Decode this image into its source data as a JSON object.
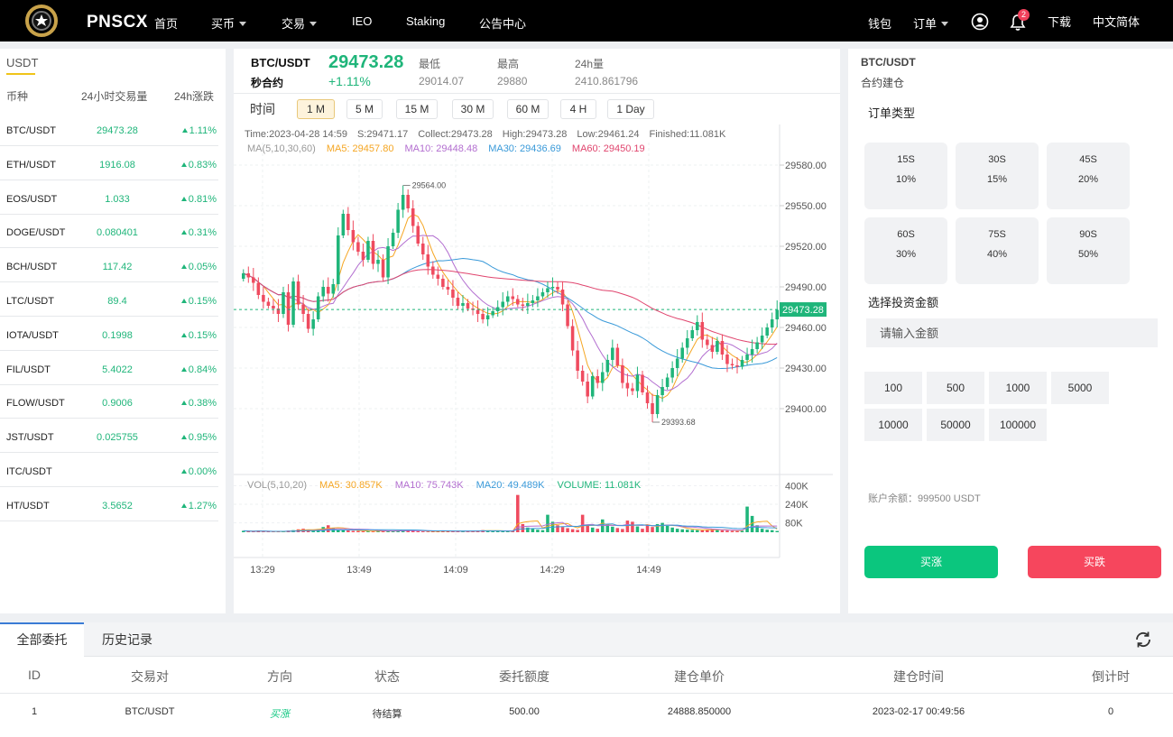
{
  "header": {
    "logo_text": "PNSCX",
    "nav": [
      {
        "label": "首页",
        "dropdown": false
      },
      {
        "label": "买币",
        "dropdown": true
      },
      {
        "label": "交易",
        "dropdown": true
      },
      {
        "label": "IEO",
        "dropdown": false
      },
      {
        "label": "Staking",
        "dropdown": false
      },
      {
        "label": "公告中心",
        "dropdown": false
      }
    ],
    "wallet": "钱包",
    "orders": "订单",
    "notif_count": "2",
    "download": "下载",
    "language": "中文简体"
  },
  "market": {
    "tab": "USDT",
    "headers": {
      "pair": "币种",
      "volume": "24小时交易量",
      "change": "24h涨跌"
    },
    "rows": [
      {
        "pair": "BTC/USDT",
        "volume": "29473.28",
        "change": "1.11%"
      },
      {
        "pair": "ETH/USDT",
        "volume": "1916.08",
        "change": "0.83%"
      },
      {
        "pair": "EOS/USDT",
        "volume": "1.033",
        "change": "0.81%"
      },
      {
        "pair": "DOGE/USDT",
        "volume": "0.080401",
        "change": "0.31%"
      },
      {
        "pair": "BCH/USDT",
        "volume": "117.42",
        "change": "0.05%"
      },
      {
        "pair": "LTC/USDT",
        "volume": "89.4",
        "change": "0.15%"
      },
      {
        "pair": "IOTA/USDT",
        "volume": "0.1998",
        "change": "0.15%"
      },
      {
        "pair": "FIL/USDT",
        "volume": "5.4022",
        "change": "0.84%"
      },
      {
        "pair": "FLOW/USDT",
        "volume": "0.9006",
        "change": "0.38%"
      },
      {
        "pair": "JST/USDT",
        "volume": "0.025755",
        "change": "0.95%"
      },
      {
        "pair": "ITC/USDT",
        "volume": "",
        "change": "0.00%"
      },
      {
        "pair": "HT/USDT",
        "volume": "3.5652",
        "change": "1.27%"
      }
    ]
  },
  "ticker": {
    "pair": "BTC/USDT",
    "sub": "秒合约",
    "price": "29473.28",
    "change": "+1.11%",
    "low_label": "最低",
    "low": "29014.07",
    "high_label": "最高",
    "high": "29880",
    "vol_label": "24h量",
    "vol": "2410.861796"
  },
  "timeframes": {
    "label": "时间",
    "items": [
      "1 M",
      "5 M",
      "15 M",
      "30 M",
      "60 M",
      "4 H",
      "1 Day"
    ],
    "active": "1 M"
  },
  "chart_data": {
    "type": "candlestick",
    "info_line": {
      "time": "Time:2023-04-28 14:59",
      "s": "S:29471.17",
      "collect": "Collect:29473.28",
      "high": "High:29473.28",
      "low": "Low:29461.24",
      "finished": "Finished:11.081K"
    },
    "ma_legend": [
      {
        "label": "MA(5,10,30,60)",
        "color": "#999999"
      },
      {
        "label": "MA5: 29457.80",
        "color": "#f5a623"
      },
      {
        "label": "MA10: 29448.48",
        "color": "#b36fd0"
      },
      {
        "label": "MA30: 29436.69",
        "color": "#3a9ad9"
      },
      {
        "label": "MA60: 29450.19",
        "color": "#e0456e"
      }
    ],
    "vol_legend": [
      {
        "label": "VOL(5,10,20)",
        "color": "#999999"
      },
      {
        "label": "MA5: 30.857K",
        "color": "#f5a623"
      },
      {
        "label": "MA10: 75.743K",
        "color": "#b36fd0"
      },
      {
        "label": "MA20: 49.489K",
        "color": "#3a9ad9"
      },
      {
        "label": "VOLUME: 11.081K",
        "color": "#1fb57a"
      }
    ],
    "y_ticks": [
      "29580.00",
      "29550.00",
      "29520.00",
      "29490.00",
      "29460.00",
      "29430.00",
      "29400.00"
    ],
    "y_range": [
      29370,
      29590
    ],
    "vol_ticks": [
      "400K",
      "240K",
      "80K"
    ],
    "vol_range": [
      0,
      480
    ],
    "x_ticks": [
      "13:29",
      "13:49",
      "14:09",
      "14:29",
      "14:49"
    ],
    "last_price": "29473.28",
    "max_marker": "29564.00",
    "min_marker": "29393.68",
    "closes": [
      29500,
      29497,
      29493,
      29484,
      29479,
      29476,
      29474,
      29470,
      29486,
      29462,
      29494,
      29477,
      29470,
      29459,
      29466,
      29483,
      29490,
      29485,
      29492,
      29528,
      29544,
      29532,
      29523,
      29516,
      29510,
      29524,
      29507,
      29510,
      29497,
      29520,
      29530,
      29547,
      29558,
      29548,
      29535,
      29522,
      29514,
      29505,
      29499,
      29496,
      29490,
      29488,
      29482,
      29476,
      29478,
      29474,
      29473,
      29470,
      29466,
      29469,
      29472,
      29475,
      29479,
      29483,
      29481,
      29477,
      29476,
      29478,
      29480,
      29483,
      29486,
      29489,
      29490,
      29488,
      29477,
      29461,
      29443,
      29428,
      29420,
      29409,
      29424,
      29419,
      29427,
      29436,
      29445,
      29432,
      29419,
      29415,
      29413,
      29425,
      29412,
      29404,
      29396,
      29410,
      29416,
      29423,
      29430,
      29437,
      29445,
      29452,
      29458,
      29464,
      29451,
      29447,
      29442,
      29450,
      29440,
      29433,
      29432,
      29431,
      29436,
      29440,
      29444,
      29449,
      29454,
      29460,
      29466,
      29473
    ],
    "volumes": [
      12,
      8,
      6,
      15,
      5,
      4,
      6,
      7,
      9,
      14,
      18,
      25,
      30,
      20,
      16,
      28,
      45,
      60,
      38,
      22,
      18,
      15,
      12,
      10,
      9,
      8,
      11,
      14,
      12,
      10,
      9,
      15,
      22,
      18,
      12,
      9,
      7,
      6,
      8,
      10,
      14,
      9,
      7,
      6,
      8,
      10,
      12,
      15,
      18,
      14,
      11,
      9,
      8,
      10,
      12,
      320,
      70,
      40,
      30,
      22,
      18,
      150,
      90,
      60,
      45,
      35,
      26,
      20,
      150,
      60,
      40,
      30,
      110,
      70,
      48,
      36,
      28,
      100,
      90,
      50,
      30,
      60,
      45,
      70,
      80,
      55,
      40,
      30,
      25,
      22,
      20,
      18,
      16,
      24,
      30,
      20,
      16,
      14,
      12,
      10,
      12,
      220,
      140,
      60,
      30,
      22,
      18,
      11
    ]
  },
  "order_panel": {
    "pair": "BTC/USDT",
    "sub": "合约建仓",
    "type_label": "订单类型",
    "types": [
      {
        "time": "15S",
        "rate": "10%"
      },
      {
        "time": "30S",
        "rate": "15%"
      },
      {
        "time": "45S",
        "rate": "20%"
      },
      {
        "time": "60S",
        "rate": "30%"
      },
      {
        "time": "75S",
        "rate": "40%"
      },
      {
        "time": "90S",
        "rate": "50%"
      }
    ],
    "amount_label": "选择投资金额",
    "amount_placeholder": "请输入金额",
    "amounts": [
      "100",
      "500",
      "1000",
      "5000",
      "10000",
      "50000",
      "100000"
    ],
    "balance": "账户余额：999500 USDT",
    "buy_up": "买涨",
    "buy_down": "买跌",
    "colors": {
      "up": "#0bc67e",
      "down": "#f6465d"
    }
  },
  "orders": {
    "tabs": [
      "全部委托",
      "历史记录"
    ],
    "headers": [
      "ID",
      "交易对",
      "方向",
      "状态",
      "委托额度",
      "建仓单价",
      "建仓时间",
      "倒计时"
    ],
    "rows": [
      {
        "id": "1",
        "pair": "BTC/USDT",
        "direction": "买涨",
        "status": "待结算",
        "amount": "500.00",
        "price": "24888.850000",
        "time": "2023-02-17 00:49:56",
        "countdown": "0"
      }
    ]
  }
}
